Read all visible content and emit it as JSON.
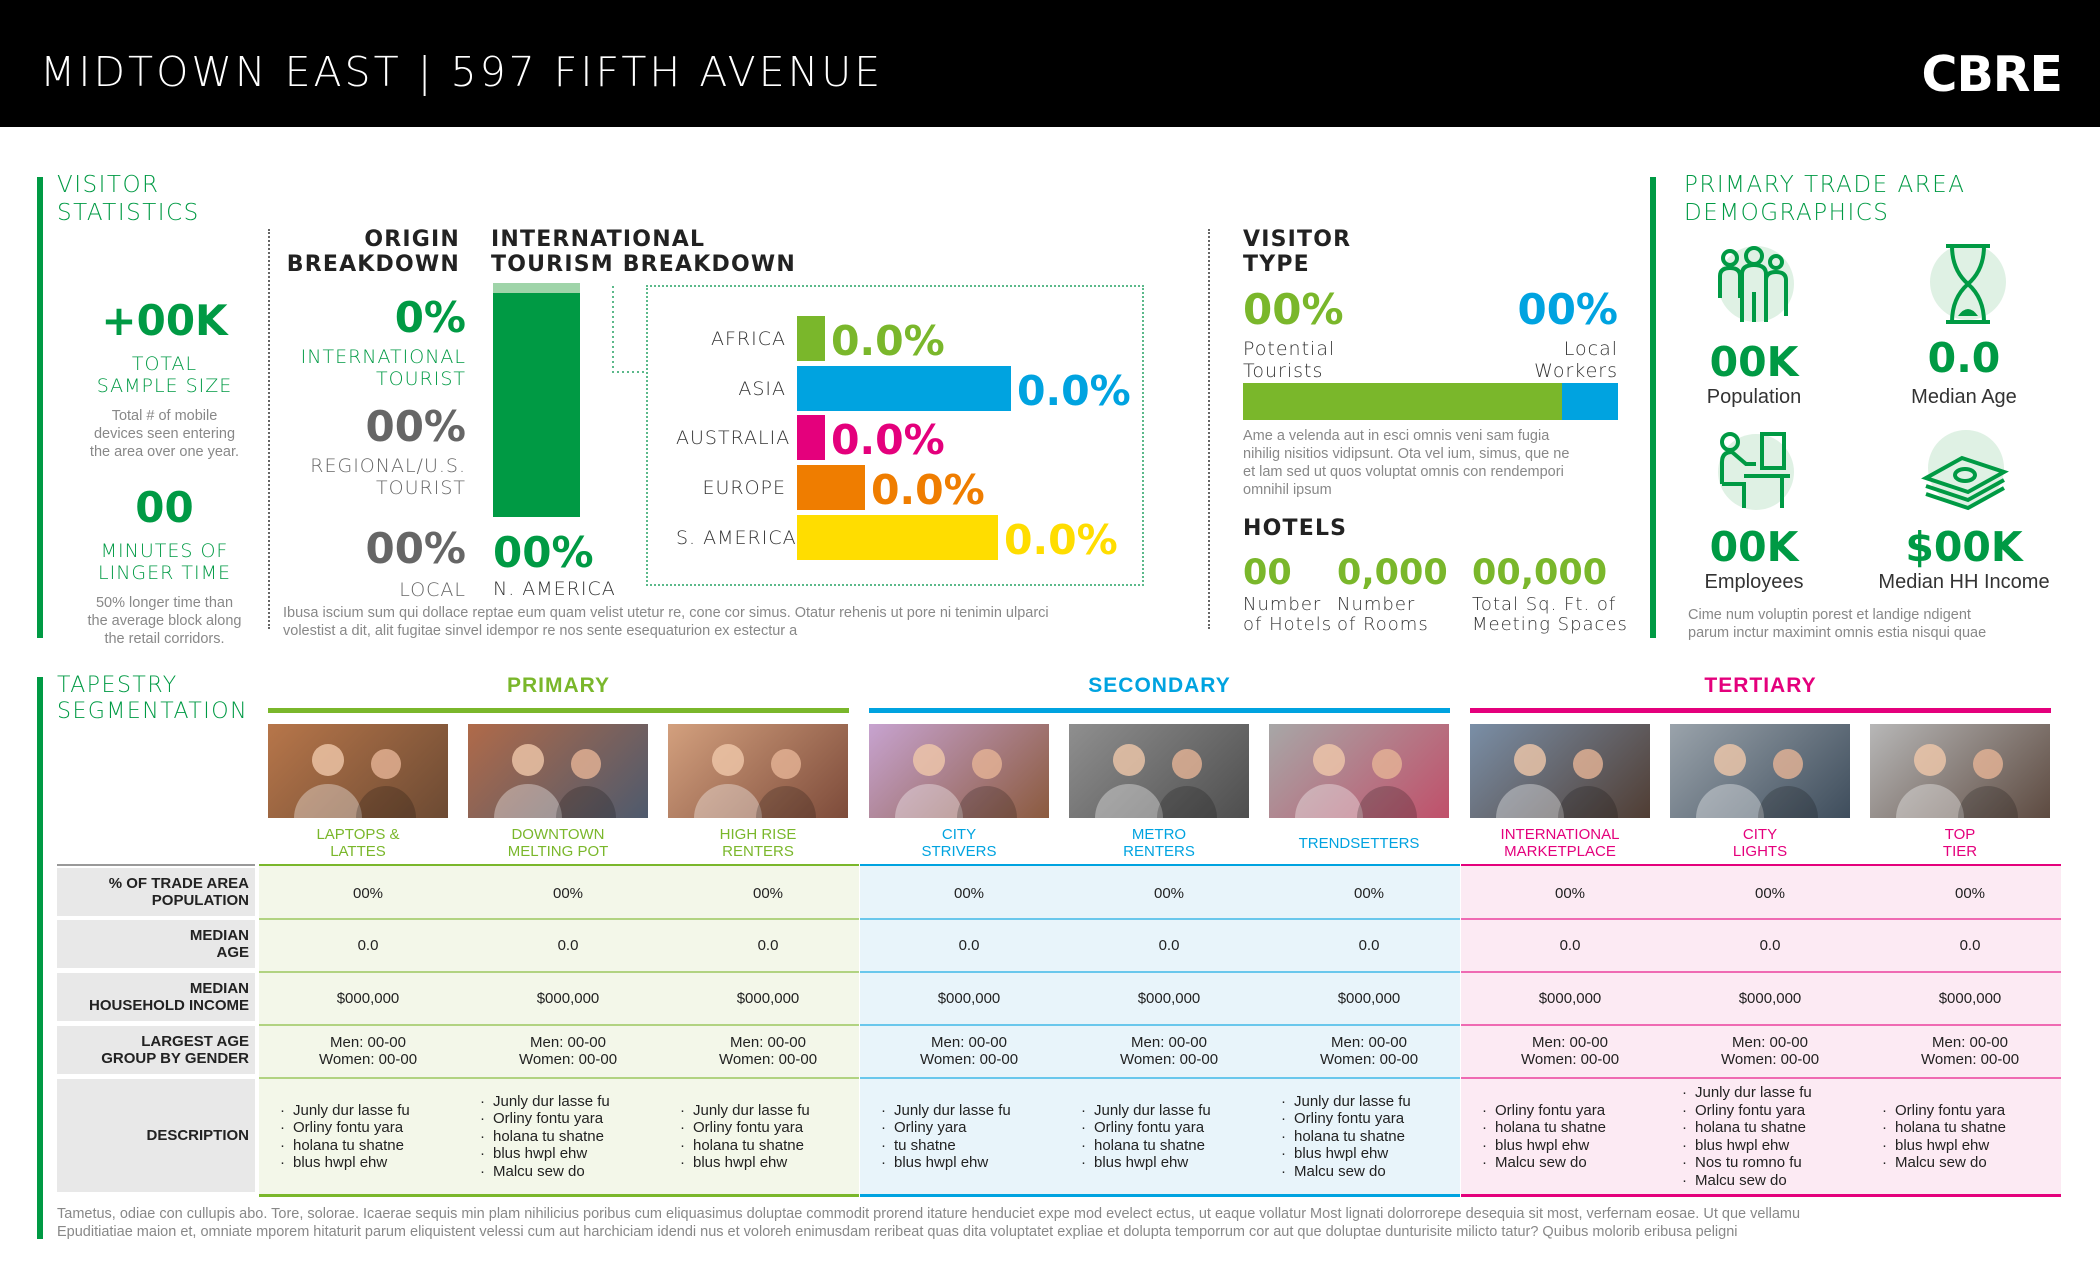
{
  "header": {
    "title": "MIDTOWN EAST | 597 FIFTH AVENUE",
    "logo": "CBRE"
  },
  "visitor_stats": {
    "title_line1": "VISITOR",
    "title_line2": "STATISTICS",
    "sample_value": "+00K",
    "sample_label1": "TOTAL",
    "sample_label2": "SAMPLE SIZE",
    "sample_note": [
      "Total # of mobile",
      "devices seen entering",
      "the area over one year."
    ],
    "linger_value": "00",
    "linger_label1": "MINUTES OF",
    "linger_label2": "LINGER TIME",
    "linger_note": [
      "50% longer time than",
      "the average block along",
      "the retail corridors."
    ]
  },
  "origin": {
    "title1": "ORIGIN",
    "title2": "BREAKDOWN",
    "international_value": "0%",
    "international_label1": "INTERNATIONAL",
    "international_label2": "TOURIST",
    "regional_value": "00%",
    "regional_label1": "REGIONAL/U.S.",
    "regional_label2": "TOURIST",
    "local_value": "00%",
    "local_label": "LOCAL",
    "na_value": "00%",
    "na_label": "N. AMERICA"
  },
  "tourism": {
    "title1": "INTERNATIONAL",
    "title2": "TOURISM BREAKDOWN",
    "bars": [
      {
        "label": "AFRICA",
        "value": "0.0%",
        "color": "#7ab72b",
        "level": 0.13
      },
      {
        "label": "ASIA",
        "value": "0.0%",
        "color": "#00a3e0",
        "level": 1.0
      },
      {
        "label": "AUSTRALIA",
        "value": "0.0%",
        "color": "#e4007c",
        "level": 0.13
      },
      {
        "label": "EUROPE",
        "value": "0.0%",
        "color": "#ef7d00",
        "level": 0.32
      },
      {
        "label": "S. AMERICA",
        "value": "0.0%",
        "color": "#ffdd00",
        "level": 0.94
      }
    ],
    "note1": "Ibusa iscium sum qui dollace reptae eum quam velist utetur re, cone cor simus. Otatur rehenis ut pore ni tenimin ulparci",
    "note2": "volestist a dit, alit fugitae sinvel idempor re nos sente esequaturion ex estectur a"
  },
  "visitor_type": {
    "title1": "VISITOR",
    "title2": "TYPE",
    "tourists_value": "00%",
    "tourists_label1": "Potential",
    "tourists_label2": "Tourists",
    "workers_value": "00%",
    "workers_label1": "Local",
    "workers_label2": "Workers",
    "tourists_share": 0.85,
    "colors": {
      "tourists": "#7ab72b",
      "workers": "#00a3e0"
    },
    "note": [
      "Ame a velenda aut in esci omnis veni sam fugia",
      "nihilig nisitios vidipsunt. Ota vel ium, simus, que ne",
      "et lam sed ut quos voluptat omnis con rendempori",
      "omnihil ipsum"
    ]
  },
  "hotels": {
    "title": "HOTELS",
    "items": [
      {
        "value": "00",
        "label1": "Number",
        "label2": "of Hotels"
      },
      {
        "value": "0,000",
        "label1": "Number",
        "label2": "of Rooms"
      },
      {
        "value": "00,000",
        "label1": "Total Sq. Ft. of",
        "label2": "Meeting Spaces"
      }
    ]
  },
  "demographics": {
    "title1": "PRIMARY TRADE AREA",
    "title2": "DEMOGRAPHICS",
    "items": [
      {
        "value": "00K",
        "label": "Population",
        "icon": "people-icon"
      },
      {
        "value": "0.0",
        "label": "Median Age",
        "icon": "hourglass-icon"
      },
      {
        "value": "00K",
        "label": "Employees",
        "icon": "worker-desk-icon"
      },
      {
        "value": "$00K",
        "label": "Median HH Income",
        "icon": "money-stack-icon"
      }
    ],
    "note": [
      "Cime num voluptin porest et landige ndigent",
      "parum inctur maximint omnis estia nisqui quae"
    ]
  },
  "tapestry": {
    "title1": "TAPESTRY",
    "title2": "SEGMENTATION",
    "groups": [
      {
        "name": "PRIMARY",
        "color": "#7ab72b"
      },
      {
        "name": "SECONDARY",
        "color": "#00a3e0"
      },
      {
        "name": "TERTIARY",
        "color": "#e4007c"
      }
    ],
    "row_labels": [
      [
        "% OF TRADE AREA",
        "POPULATION"
      ],
      [
        "MEDIAN",
        "AGE"
      ],
      [
        "MEDIAN",
        "HOUSEHOLD INCOME"
      ],
      [
        "LARGEST AGE",
        "GROUP BY GENDER"
      ],
      [
        "DESCRIPTION"
      ]
    ],
    "segments": [
      {
        "name1": "LAPTOPS &",
        "name2": "LATTES",
        "pct": "00%",
        "age": "0.0",
        "income": "$000,000",
        "men": "Men: 00-00",
        "women": "Women: 00-00",
        "desc": [
          "Junly dur lasse fu",
          "Orliny fontu yara",
          "holana tu shatne",
          "blus hwpl ehw"
        ]
      },
      {
        "name1": "DOWNTOWN",
        "name2": "MELTING POT",
        "pct": "00%",
        "age": "0.0",
        "income": "$000,000",
        "men": "Men: 00-00",
        "women": "Women: 00-00",
        "desc": [
          "Junly dur lasse fu",
          "Orliny fontu yara",
          "holana tu shatne",
          "blus hwpl ehw",
          "Malcu sew do"
        ]
      },
      {
        "name1": "HIGH RISE",
        "name2": "RENTERS",
        "pct": "00%",
        "age": "0.0",
        "income": "$000,000",
        "men": "Men: 00-00",
        "women": "Women: 00-00",
        "desc": [
          "Junly dur lasse fu",
          "Orliny fontu yara",
          "holana tu shatne",
          "blus hwpl ehw"
        ]
      },
      {
        "name1": "CITY",
        "name2": "STRIVERS",
        "pct": "00%",
        "age": "0.0",
        "income": "$000,000",
        "men": "Men: 00-00",
        "women": "Women: 00-00",
        "desc": [
          "Junly dur lasse fu",
          "Orliny yara",
          "tu shatne",
          "blus hwpl ehw"
        ]
      },
      {
        "name1": "METRO",
        "name2": "RENTERS",
        "pct": "00%",
        "age": "0.0",
        "income": "$000,000",
        "men": "Men: 00-00",
        "women": "Women: 00-00",
        "desc": [
          "Junly dur lasse fu",
          "Orliny fontu yara",
          "holana tu shatne",
          "blus hwpl ehw"
        ]
      },
      {
        "name1": "TRENDSETTERS",
        "name2": "",
        "pct": "00%",
        "age": "0.0",
        "income": "$000,000",
        "men": "Men: 00-00",
        "women": "Women: 00-00",
        "desc": [
          "Junly dur lasse fu",
          "Orliny fontu yara",
          "holana tu shatne",
          "blus hwpl ehw",
          "Malcu sew do"
        ]
      },
      {
        "name1": "INTERNATIONAL",
        "name2": "MARKETPLACE",
        "pct": "00%",
        "age": "0.0",
        "income": "$000,000",
        "men": "Men: 00-00",
        "women": "Women: 00-00",
        "desc": [
          "Orliny fontu yara",
          "holana tu shatne",
          "blus hwpl ehw",
          "Malcu sew do"
        ]
      },
      {
        "name1": "CITY",
        "name2": "LIGHTS",
        "pct": "00%",
        "age": "0.0",
        "income": "$000,000",
        "men": "Men: 00-00",
        "women": "Women: 00-00",
        "desc": [
          "Junly dur lasse fu",
          "Orliny fontu yara",
          "holana tu shatne",
          "blus hwpl ehw",
          "Nos tu romno fu",
          "Malcu sew do"
        ]
      },
      {
        "name1": "TOP",
        "name2": "TIER",
        "pct": "00%",
        "age": "0.0",
        "income": "$000,000",
        "men": "Men: 00-00",
        "women": "Women: 00-00",
        "desc": [
          "Orliny fontu yara",
          "holana tu shatne",
          "blus hwpl ehw",
          "Malcu sew do"
        ]
      }
    ]
  },
  "footer": {
    "line1": "Tametus, odiae con cullupis abo. Tore, solorae. Icaerae sequis min plam nihilicius poribus cum eliquasimus doluptae commodit prorend itature henduciet expe mod evelect ectus, ut eaque vollatur Most lignati dolorrorepe desequia sit most, verfernam eosae. Ut que vellamu",
    "line2": "Epuditiatiae maion et, omniate mporem hitaturit parum eliquistent velessi cum aut harchiciam idendi nus et voloreh enimusdam reribeat quas dita voluptatet expliae et dolupta temporrum cor aut que doluptae dunturisite milicto tatur? Quibus molorib eribusa peligni"
  }
}
